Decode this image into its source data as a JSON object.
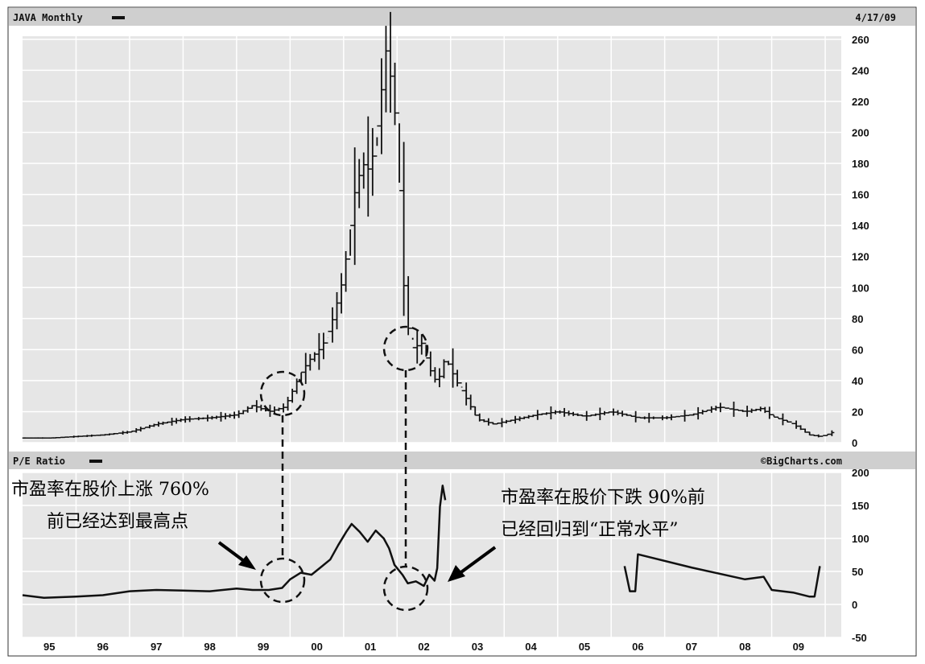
{
  "header": {
    "ticker_label": "JAVA Monthly",
    "date": "4/17/09",
    "pe_label": "P/E Ratio",
    "credit": "©BigCharts.com"
  },
  "annotations": {
    "left_line1": "市盈率在股价上涨 760%",
    "left_line2": "前已经达到最高点",
    "right_line1": "市盈率在股价下跌 90%前",
    "right_line2": "已经回归到“正常水平”"
  },
  "colors": {
    "page": "#ffffff",
    "header_bar": "#cfcfcf",
    "plot_bg": "#e6e6e6",
    "grid": "#ffffff",
    "series": "#111111"
  },
  "chart_data": [
    {
      "type": "line",
      "title": "JAVA Monthly",
      "series_style": "monthly price bars",
      "x_tick_labels": [
        "95",
        "96",
        "97",
        "98",
        "99",
        "00",
        "01",
        "02",
        "03",
        "04",
        "05",
        "06",
        "07",
        "08",
        "09"
      ],
      "y_tick_labels": [
        "0",
        "20",
        "40",
        "60",
        "80",
        "100",
        "120",
        "140",
        "160",
        "180",
        "200",
        "220",
        "240",
        "260"
      ],
      "xlim": [
        1994.0,
        2009.3
      ],
      "ylim": [
        0,
        262
      ],
      "grid": true,
      "series": [
        {
          "values": [
            [
              1994.0,
              3
            ],
            [
              1994.5,
              3
            ],
            [
              1995.0,
              4
            ],
            [
              1995.5,
              5
            ],
            [
              1996.0,
              7
            ],
            [
              1996.5,
              12
            ],
            [
              1997.0,
              15
            ],
            [
              1997.5,
              16
            ],
            [
              1998.0,
              18
            ],
            [
              1998.3,
              24
            ],
            [
              1998.6,
              20
            ],
            [
              1998.9,
              23
            ],
            [
              1999.0,
              30
            ],
            [
              1999.2,
              45
            ],
            [
              1999.4,
              55
            ],
            [
              1999.6,
              62
            ],
            [
              1999.8,
              80
            ],
            [
              1999.95,
              100
            ],
            [
              2000.05,
              120
            ],
            [
              2000.2,
              160
            ],
            [
              2000.35,
              180
            ],
            [
              2000.5,
              175
            ],
            [
              2000.65,
              210
            ],
            [
              2000.8,
              255
            ],
            [
              2000.9,
              230
            ],
            [
              2001.0,
              200
            ],
            [
              2001.1,
              110
            ],
            [
              2001.2,
              75
            ],
            [
              2001.3,
              60
            ],
            [
              2001.45,
              65
            ],
            [
              2001.6,
              48
            ],
            [
              2001.75,
              38
            ],
            [
              2001.9,
              55
            ],
            [
              2002.1,
              40
            ],
            [
              2002.3,
              28
            ],
            [
              2002.5,
              15
            ],
            [
              2002.8,
              12
            ],
            [
              2003.2,
              15
            ],
            [
              2003.6,
              18
            ],
            [
              2004.0,
              20
            ],
            [
              2004.5,
              17
            ],
            [
              2005.0,
              20
            ],
            [
              2005.5,
              16
            ],
            [
              2006.0,
              16
            ],
            [
              2006.5,
              18
            ],
            [
              2007.0,
              23
            ],
            [
              2007.5,
              20
            ],
            [
              2007.8,
              22
            ],
            [
              2008.0,
              17
            ],
            [
              2008.4,
              12
            ],
            [
              2008.7,
              5
            ],
            [
              2008.9,
              4
            ],
            [
              2009.1,
              6
            ],
            [
              2009.2,
              8
            ]
          ]
        }
      ]
    },
    {
      "type": "line",
      "title": "P/E Ratio",
      "x_tick_labels": [
        "95",
        "96",
        "97",
        "98",
        "99",
        "00",
        "01",
        "02",
        "03",
        "04",
        "05",
        "06",
        "07",
        "08",
        "09"
      ],
      "y_tick_labels": [
        "-50",
        "0",
        "50",
        "100",
        "150",
        "200"
      ],
      "xlim": [
        1994.0,
        2009.3
      ],
      "ylim": [
        -50,
        200
      ],
      "grid": true,
      "series": [
        {
          "values": [
            [
              1994.0,
              14
            ],
            [
              1994.4,
              10
            ],
            [
              1995.0,
              12
            ],
            [
              1995.5,
              14
            ],
            [
              1996.0,
              20
            ],
            [
              1996.5,
              22
            ],
            [
              1997.0,
              21
            ],
            [
              1997.5,
              20
            ],
            [
              1998.0,
              24
            ],
            [
              1998.3,
              22
            ],
            [
              1998.6,
              22
            ],
            [
              1998.85,
              25
            ],
            [
              1999.0,
              38
            ],
            [
              1999.2,
              48
            ],
            [
              1999.4,
              45
            ],
            [
              1999.6,
              58
            ],
            [
              1999.75,
              68
            ],
            [
              1999.9,
              90
            ],
            [
              2000.05,
              110
            ],
            [
              2000.15,
              122
            ],
            [
              2000.3,
              110
            ],
            [
              2000.45,
              95
            ],
            [
              2000.6,
              112
            ],
            [
              2000.75,
              100
            ],
            [
              2000.85,
              85
            ],
            [
              2000.95,
              60
            ],
            [
              2001.1,
              45
            ],
            [
              2001.2,
              32
            ],
            [
              2001.35,
              35
            ],
            [
              2001.5,
              28
            ],
            [
              2001.6,
              45
            ],
            [
              2001.7,
              36
            ],
            [
              2001.75,
              55
            ],
            [
              2001.8,
              148
            ],
            [
              2001.85,
              180
            ],
            [
              2001.9,
              158
            ]
          ]
        },
        {
          "values": [
            [
              2005.25,
              58
            ],
            [
              2005.35,
              20
            ],
            [
              2005.45,
              20
            ],
            [
              2005.5,
              76
            ],
            [
              2006.5,
              56
            ],
            [
              2007.5,
              38
            ],
            [
              2007.85,
              42
            ],
            [
              2008.0,
              22
            ],
            [
              2008.4,
              18
            ],
            [
              2008.7,
              12
            ],
            [
              2008.8,
              12
            ],
            [
              2008.9,
              58
            ]
          ]
        }
      ]
    }
  ]
}
